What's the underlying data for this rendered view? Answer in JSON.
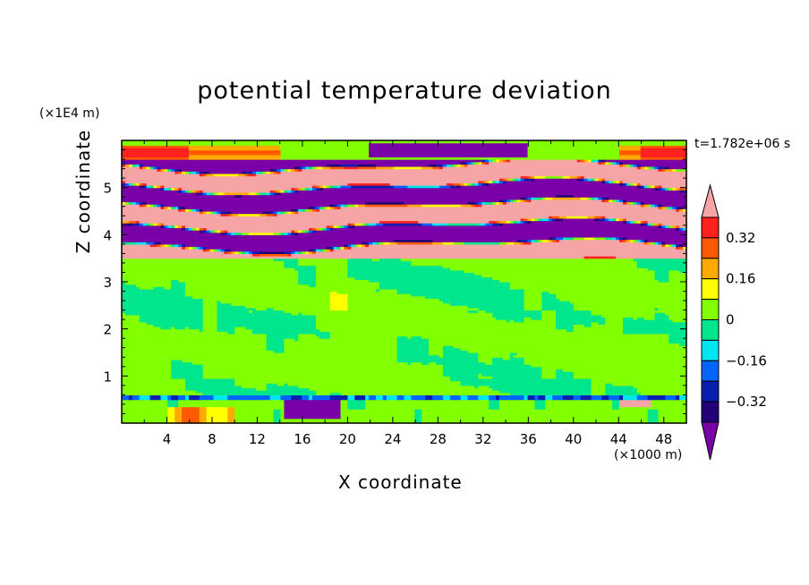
{
  "chart_data": {
    "type": "heatmap",
    "title": "potential temperature deviation",
    "xlabel": "X coordinate",
    "ylabel": "Z coordinate",
    "x_unit": "(×1000 m)",
    "y_unit": "(×1E4 m)",
    "time_label": "t=1.782e+06 s",
    "xlim": [
      0,
      50
    ],
    "ylim": [
      0,
      6
    ],
    "x_ticks": [
      "4",
      "8",
      "12",
      "16",
      "20",
      "24",
      "28",
      "32",
      "36",
      "40",
      "44",
      "48"
    ],
    "y_ticks": [
      "1",
      "2",
      "3",
      "4",
      "5"
    ],
    "colorbar": {
      "labels": [
        "0.32",
        "0.16",
        "0",
        "-0.16",
        "-0.32"
      ],
      "levels": [
        {
          "color": "#7a00a8",
          "range": "< -0.40",
          "extend": "min"
        },
        {
          "color": "#240078",
          "range": "-0.40 to -0.32"
        },
        {
          "color": "#0a1fb0",
          "range": "-0.32 to -0.24"
        },
        {
          "color": "#0064ff",
          "range": "-0.24 to -0.16"
        },
        {
          "color": "#00e6f0",
          "range": "-0.16 to -0.08"
        },
        {
          "color": "#00e68c",
          "range": "-0.08 to 0"
        },
        {
          "color": "#82ff00",
          "range": "0 to 0.08"
        },
        {
          "color": "#ffff00",
          "range": "0.08 to 0.16"
        },
        {
          "color": "#ffaa00",
          "range": "0.16 to 0.24"
        },
        {
          "color": "#ff5a00",
          "range": "0.24 to 0.32"
        },
        {
          "color": "#ff2020",
          "range": "0.32 to 0.40"
        },
        {
          "color": "#f5a5a5",
          "range": "> 0.40",
          "extend": "max"
        }
      ]
    },
    "layers": [
      {
        "z_range": [
          5.6,
          6.0
        ],
        "pattern": "mostly near 0, warm patches at x≈0-14 and x≈44-50, cold blob near x≈22-36"
      },
      {
        "z_range": [
          3.5,
          5.6
        ],
        "pattern": "alternating strong warm (>0.40) and strong cold (<-0.40) horizontal bands"
      },
      {
        "z_range": [
          0.6,
          3.5
        ],
        "pattern": "weak noisy field between -0.08 and 0.08"
      },
      {
        "z_range": [
          0.0,
          0.6
        ],
        "pattern": "turbulent near-surface layer, warm patches near x≈5-9, cold blob near x≈15-20"
      }
    ]
  }
}
